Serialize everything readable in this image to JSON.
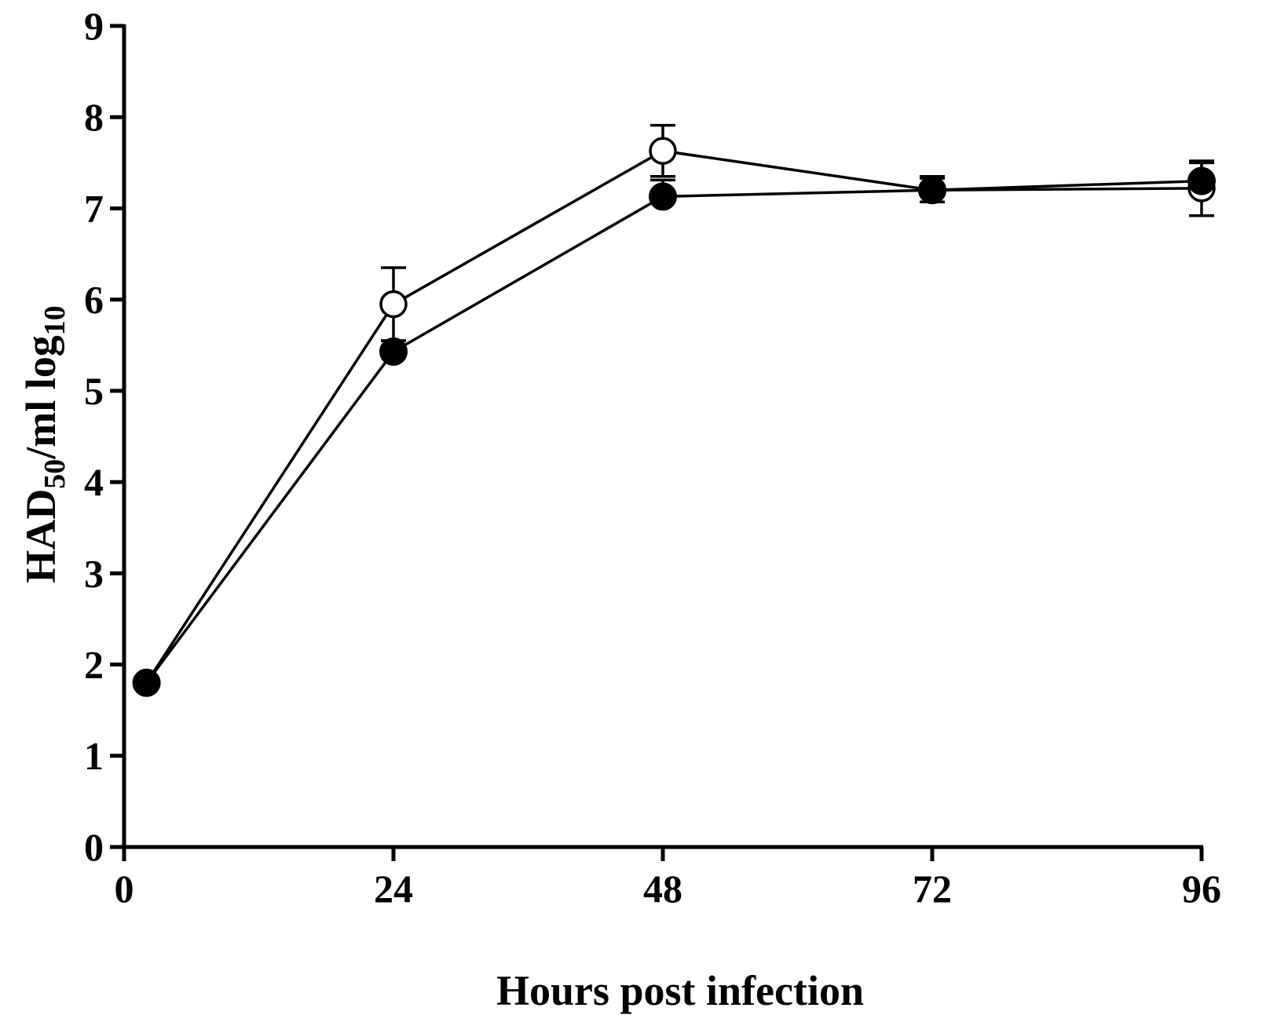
{
  "chart_data": {
    "type": "line",
    "title": "",
    "xlabel": "Hours post infection",
    "ylabel": {
      "main": "HAD",
      "sub1": "50",
      "mid": "/ml log",
      "sub2": "10"
    },
    "xlim": [
      0,
      96
    ],
    "ylim": [
      0,
      9
    ],
    "xticks": [
      "0",
      "24",
      "48",
      "72",
      "96"
    ],
    "xtick_values": [
      0,
      24,
      48,
      72,
      96
    ],
    "yticks": [
      "0",
      "1",
      "2",
      "3",
      "4",
      "5",
      "6",
      "7",
      "8",
      "9"
    ],
    "ytick_values": [
      0,
      1,
      2,
      3,
      4,
      5,
      6,
      7,
      8,
      9
    ],
    "grid": false,
    "legend": "none",
    "series": [
      {
        "marker": "open-circle",
        "color": "#000000",
        "x": [
          2,
          24,
          48,
          72,
          96
        ],
        "y": [
          1.8,
          5.95,
          7.63,
          7.2,
          7.22
        ],
        "err": [
          0,
          0.4,
          0.28,
          0.13,
          0.3
        ]
      },
      {
        "marker": "filled-circle",
        "color": "#000000",
        "x": [
          2,
          24,
          48,
          72,
          96
        ],
        "y": [
          1.8,
          5.43,
          7.13,
          7.2,
          7.3
        ],
        "err": [
          0,
          0.12,
          0.18,
          0.15,
          0.2
        ]
      }
    ]
  }
}
